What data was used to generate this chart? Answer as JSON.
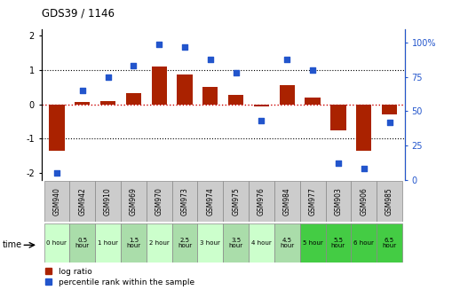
{
  "title": "GDS39 / 1146",
  "samples": [
    "GSM940",
    "GSM942",
    "GSM910",
    "GSM969",
    "GSM970",
    "GSM973",
    "GSM974",
    "GSM975",
    "GSM976",
    "GSM984",
    "GSM977",
    "GSM903",
    "GSM906",
    "GSM985"
  ],
  "time_labels": [
    "0 hour",
    "0.5\nhour",
    "1 hour",
    "1.5\nhour",
    "2 hour",
    "2.5\nhour",
    "3 hour",
    "3.5\nhour",
    "4 hour",
    "4.5\nhour",
    "5 hour",
    "5.5\nhour",
    "6 hour",
    "6.5\nhour"
  ],
  "log_ratio": [
    -1.35,
    0.07,
    0.1,
    0.32,
    1.1,
    0.87,
    0.5,
    0.27,
    -0.05,
    0.55,
    0.2,
    -0.75,
    -1.35,
    -0.3
  ],
  "percentile": [
    5,
    65,
    75,
    83,
    99,
    97,
    88,
    78,
    43,
    88,
    80,
    12,
    8,
    42
  ],
  "bar_color": "#aa2200",
  "dot_color": "#2255cc",
  "bg_color": "#ffffff",
  "ref_line_color": "#cc0000",
  "dotted_color": "#000000",
  "right_axis_color": "#2255cc",
  "ylim_left": [
    -2.2,
    2.2
  ],
  "ylim_right": [
    0,
    110
  ],
  "yticks_left": [
    -2,
    -1,
    0,
    1,
    2
  ],
  "yticks_right": [
    0,
    25,
    50,
    75,
    100
  ],
  "gsm_bg": "#cccccc",
  "time_bg_light": "#ccffcc",
  "time_bg_bright": "#55ee55",
  "legend_log": "log ratio",
  "legend_pct": "percentile rank within the sample"
}
